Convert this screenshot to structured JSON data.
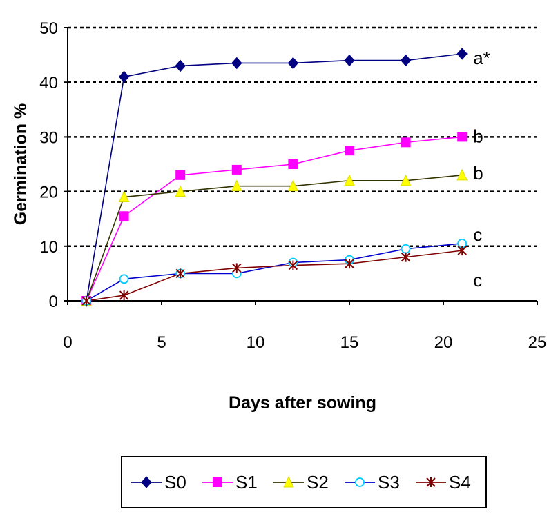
{
  "chart_data": {
    "type": "line",
    "xlabel": "Days after sowing",
    "ylabel": "Germination %",
    "xlim": [
      0,
      25
    ],
    "ylim": [
      0,
      50
    ],
    "x_ticks": [
      "0",
      "5",
      "10",
      "15",
      "20",
      "25"
    ],
    "y_ticks": [
      "0",
      "10",
      "20",
      "30",
      "40",
      "50"
    ],
    "grid": "horizontal dashed",
    "legend_position": "bottom",
    "x": [
      1,
      3,
      6,
      9,
      12,
      15,
      18,
      21
    ],
    "series": [
      {
        "name": "S0",
        "color": "#000080",
        "marker": "diamond",
        "values": [
          0,
          41,
          43,
          43.5,
          43.5,
          44,
          44,
          45.2
        ]
      },
      {
        "name": "S1",
        "color": "#ff00ff",
        "marker": "square",
        "values": [
          0,
          15.5,
          23,
          24,
          25,
          27.5,
          29,
          30
        ]
      },
      {
        "name": "S2",
        "color": "#333300",
        "marker": "triangle",
        "values": [
          0,
          19,
          20,
          21,
          21,
          22,
          22,
          23
        ]
      },
      {
        "name": "S3",
        "color": "#0000cc",
        "marker": "circle",
        "values": [
          0,
          4,
          5,
          5,
          7,
          7.5,
          9.5,
          10.5
        ]
      },
      {
        "name": "S4",
        "color": "#800000",
        "marker": "star",
        "values": [
          0,
          1,
          5,
          6,
          6.5,
          6.8,
          8,
          9.2
        ]
      }
    ],
    "annotations": [
      {
        "text": "a*",
        "x": 21,
        "y": 45.2
      },
      {
        "text": "b",
        "x": 21,
        "y": 30
      },
      {
        "text": "b",
        "x": 21,
        "y": 23
      },
      {
        "text": "c",
        "x": 21,
        "y": 10.5
      },
      {
        "text": "c",
        "x": 21,
        "y": 9.2
      }
    ]
  }
}
